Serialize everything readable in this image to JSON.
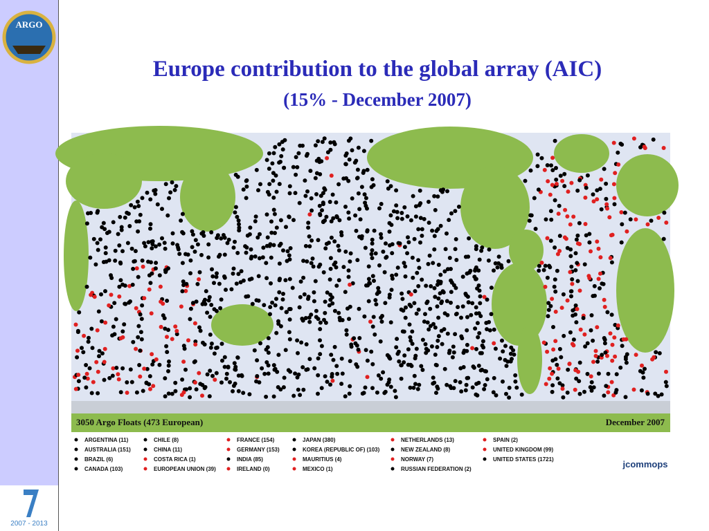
{
  "logo": {
    "text": "ARGO"
  },
  "header": {
    "title": "Europe contribution to the global array (AIC)",
    "subtitle": "(15% - December 2007)"
  },
  "map": {
    "caption": "3050 Argo Floats (473 European)",
    "date": "December 2007"
  },
  "legend": {
    "entries": [
      {
        "label": "ARGENTINA (11)",
        "color": "#000000"
      },
      {
        "label": "AUSTRALIA (151)",
        "color": "#000000"
      },
      {
        "label": "BRAZIL (6)",
        "color": "#000000"
      },
      {
        "label": "CANADA (103)",
        "color": "#000000"
      },
      {
        "label": "CHILE (8)",
        "color": "#000000"
      },
      {
        "label": "CHINA (11)",
        "color": "#000000"
      },
      {
        "label": "COSTA RICA (1)",
        "color": "#e02020"
      },
      {
        "label": "EUROPEAN UNION (39)",
        "color": "#e02020"
      },
      {
        "label": "FRANCE (154)",
        "color": "#e02020"
      },
      {
        "label": "GERMANY (153)",
        "color": "#e02020"
      },
      {
        "label": "INDIA (85)",
        "color": "#000000"
      },
      {
        "label": "IRELAND (0)",
        "color": "#e02020"
      },
      {
        "label": "JAPAN (380)",
        "color": "#000000"
      },
      {
        "label": "KOREA (REPUBLIC OF) (103)",
        "color": "#000000"
      },
      {
        "label": "MAURITIUS (4)",
        "color": "#e02020"
      },
      {
        "label": "MEXICO (1)",
        "color": "#e02020"
      },
      {
        "label": "NETHERLANDS (13)",
        "color": "#e02020"
      },
      {
        "label": "NEW ZEALAND (8)",
        "color": "#000000"
      },
      {
        "label": "NORWAY (7)",
        "color": "#e02020"
      },
      {
        "label": "RUSSIAN FEDERATION (2)",
        "color": "#000000"
      },
      {
        "label": "SPAIN (2)",
        "color": "#e02020"
      },
      {
        "label": "UNITED KINGDOM (99)",
        "color": "#e02020"
      },
      {
        "label": "UNITED STATES (1721)",
        "color": "#000000"
      }
    ]
  },
  "partner": {
    "text": "jcommops"
  },
  "program": {
    "text": "2007 - 2013"
  }
}
